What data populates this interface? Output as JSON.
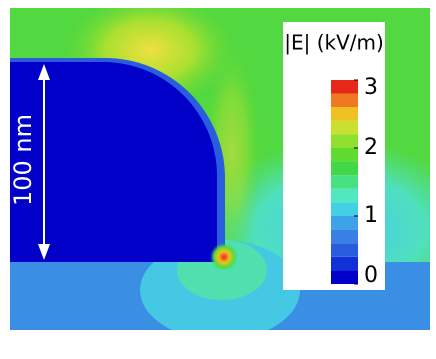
{
  "chart_data": {
    "type": "field-map",
    "scale_label": "100 nm",
    "colorbar": {
      "title": "|E|  (kV/m)",
      "lim": [
        0,
        3
      ],
      "ticks": [
        0,
        1,
        2,
        3
      ],
      "levels": [
        0,
        0.2,
        0.4,
        0.6,
        0.8,
        1.0,
        1.2,
        1.4,
        1.6,
        1.8,
        2.0,
        2.2,
        2.4,
        2.6,
        2.8
      ],
      "colors": [
        "#0000c8",
        "#1030d8",
        "#2a5ce0",
        "#3a80e4",
        "#3ea2e8",
        "#44d0e4",
        "#50e8c0",
        "#48e080",
        "#40d848",
        "#60dc30",
        "#90e030",
        "#c8e030",
        "#f0c020",
        "#f07820",
        "#e82818"
      ]
    }
  }
}
